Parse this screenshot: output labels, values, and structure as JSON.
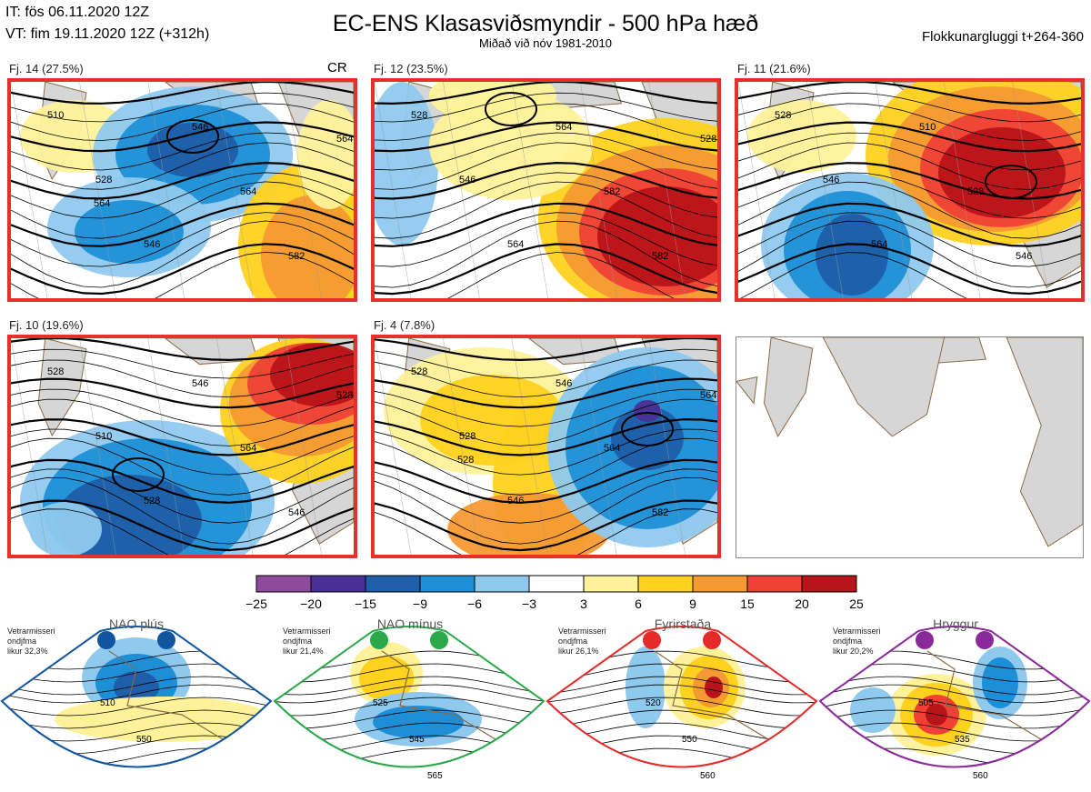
{
  "header": {
    "it_line": "IT: fös 06.11.2020 12Z",
    "vt_line": "VT: fim 19.11.2020 12Z  (+312h)",
    "title": "EC-ENS Klasasviðsmyndir - 500 hPa hæð",
    "subtitle": "Miðað við nóv 1981-2010",
    "window": "Flokkunargluggi t+264-360",
    "cr_label": "CR"
  },
  "colors": {
    "frame": "#e8302a",
    "land": "#d6d6d6",
    "coast": "#8b6a45"
  },
  "panels": [
    {
      "label": "Fj. 14 (27.5%)",
      "contours": [
        "510",
        "528",
        "546",
        "546",
        "564",
        "582",
        "564",
        "564"
      ]
    },
    {
      "label": "Fj. 12 (23.5%)",
      "contours": [
        "528",
        "546",
        "564",
        "564",
        "582",
        "582",
        "528"
      ]
    },
    {
      "label": "Fj. 11 (21.6%)",
      "contours": [
        "528",
        "546",
        "564",
        "510",
        "528",
        "546"
      ]
    },
    {
      "label": "Fj. 10 (19.6%)",
      "contours": [
        "528",
        "510",
        "528",
        "546",
        "564",
        "546",
        "528"
      ]
    },
    {
      "label": "Fj. 4 (7.8%)",
      "contours": [
        "528",
        "528",
        "546",
        "546",
        "564",
        "582",
        "564",
        "528"
      ]
    }
  ],
  "chart_data": {
    "type": "heatmap",
    "title": "EC-ENS Klasasviðsmyndir - 500 hPa hæð",
    "subtitle": "Miðað við nóv 1981-2010",
    "colorbar": {
      "boundaries": [
        "−25",
        "−20",
        "−15",
        "−9",
        "−6",
        "−3",
        "3",
        "6",
        "9",
        "15",
        "20",
        "25"
      ],
      "colors": [
        "#8e4a9c",
        "#4a2f95",
        "#1f5ea8",
        "#1e8fd6",
        "#8fc9ee",
        "#ffffff",
        "#fff29a",
        "#ffd21f",
        "#f59a32",
        "#ef4136",
        "#b8141a"
      ]
    },
    "clusters": [
      {
        "name": "Fj. 14",
        "percent": 27.5
      },
      {
        "name": "Fj. 12",
        "percent": 23.5
      },
      {
        "name": "Fj. 11",
        "percent": 21.6
      },
      {
        "name": "Fj. 10",
        "percent": 19.6
      },
      {
        "name": "Fj. 4",
        "percent": 7.8
      }
    ]
  },
  "regimes": [
    {
      "name": "NAO plús",
      "note": "Vetrarmisseri\nondjfma\nlikur 32,3%",
      "color": "#1155a0",
      "contours": [
        "510",
        "550"
      ]
    },
    {
      "name": "NAO mínus",
      "note": "Vetrarmisseri\nondjfma\nlikur 21,4%",
      "color": "#2aa84a",
      "contours": [
        "525",
        "545",
        "565"
      ]
    },
    {
      "name": "Fyrirstaða",
      "note": "Vetrarmisseri\nondjfma\nlikur 26,1%",
      "color": "#e62a2a",
      "contours": [
        "520",
        "550",
        "560"
      ]
    },
    {
      "name": "Hryggur",
      "note": "Vetrarmisseri\nondjfma\nlikur 20,2%",
      "color": "#8a2a9a",
      "contours": [
        "505",
        "535",
        "560"
      ]
    }
  ]
}
